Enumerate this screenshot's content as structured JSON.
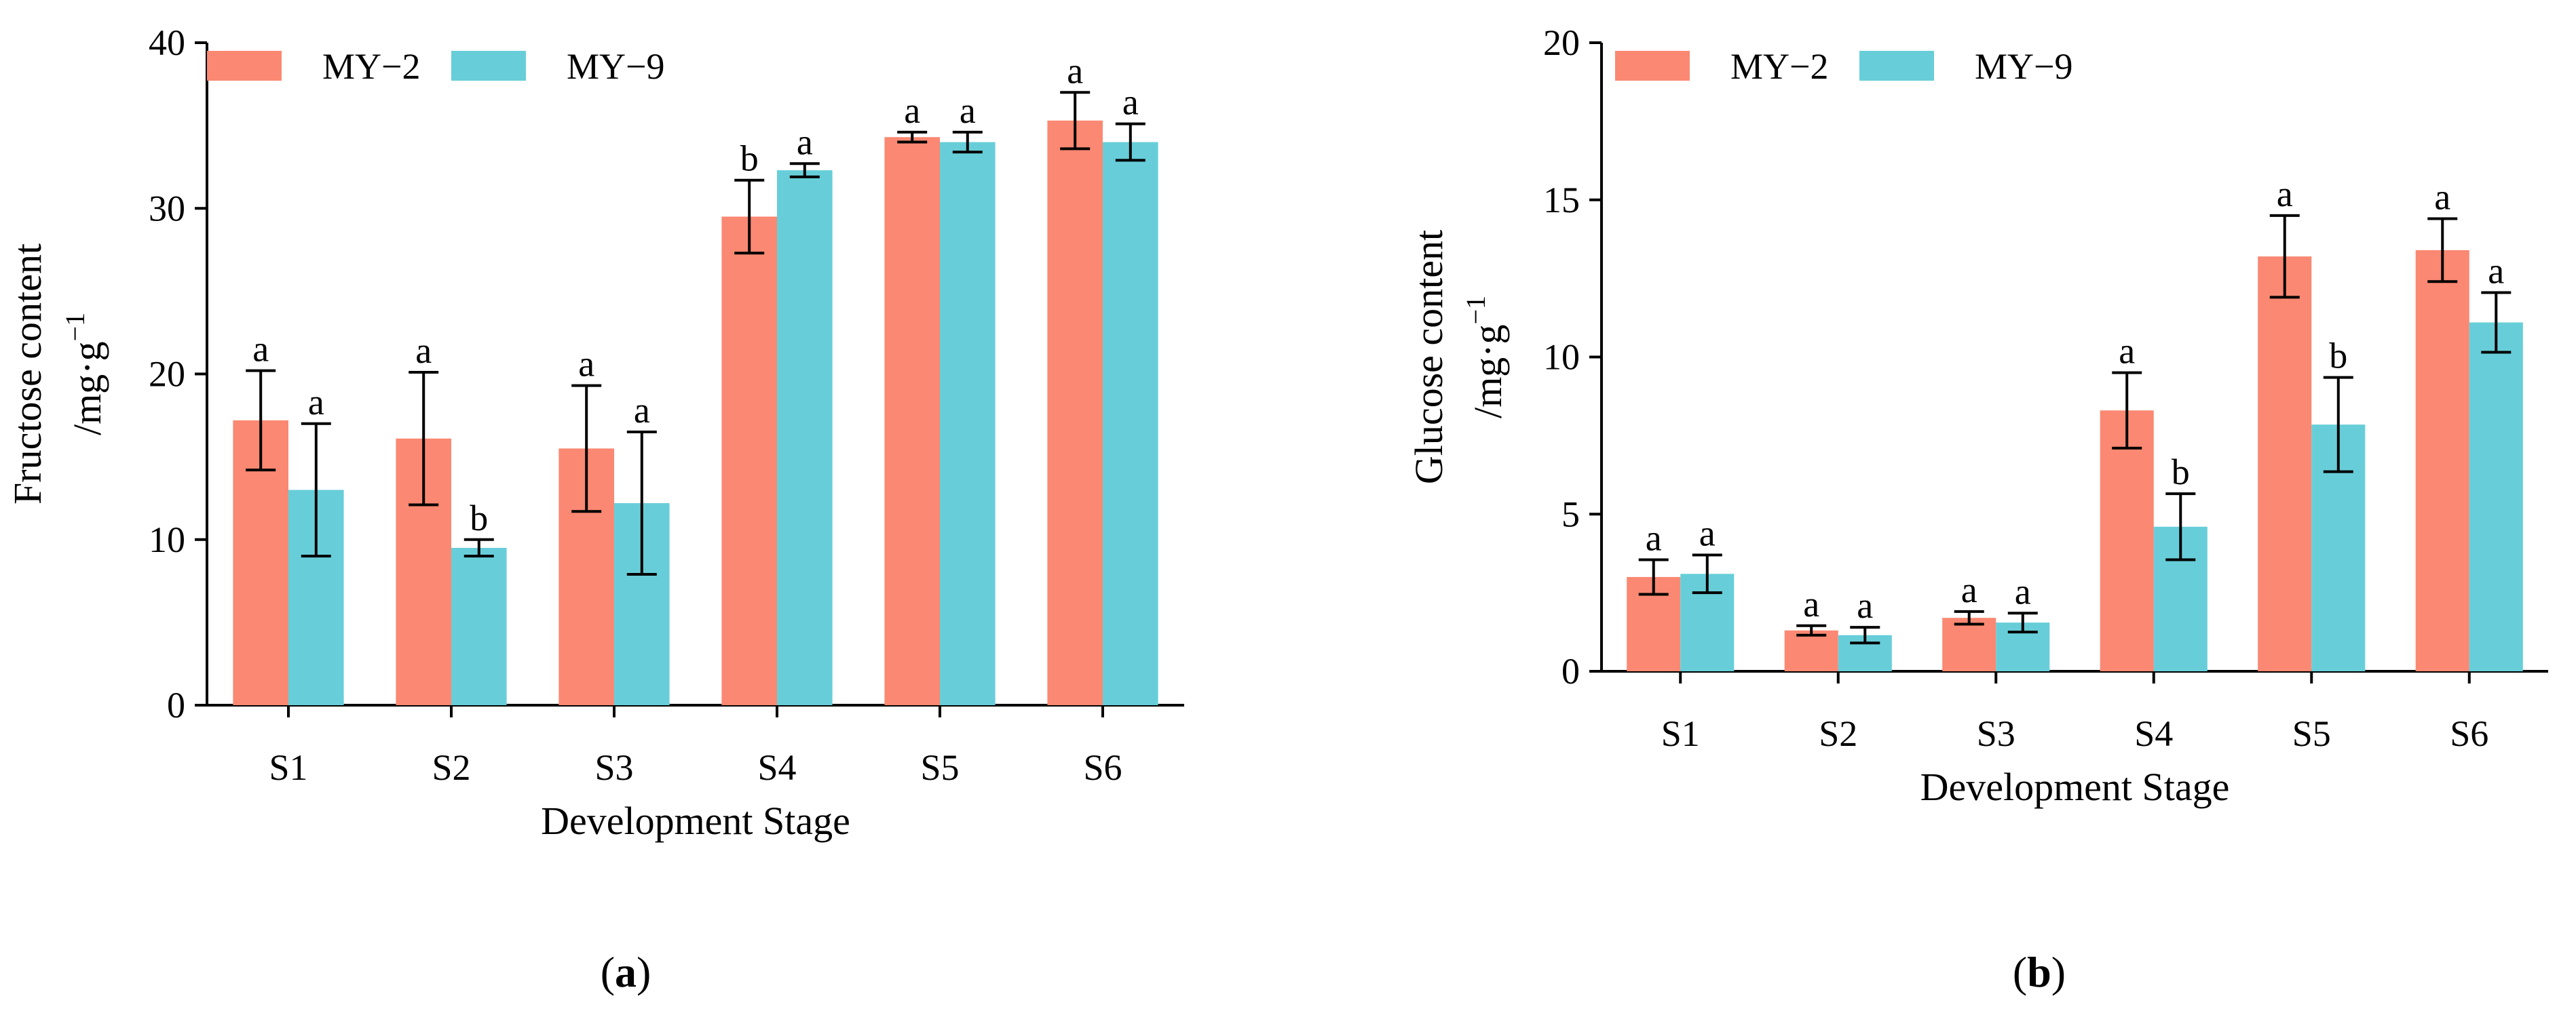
{
  "colors": {
    "MY-2": "#FA8872",
    "MY-9": "#67CED9"
  },
  "chart_data": [
    {
      "type": "bar",
      "panel": "(a)",
      "panel_letter": "a",
      "xlabel": "Development Stage",
      "ylabel_line1": "Fructose content",
      "ylabel_unit_main": "/mg·g",
      "ylabel_unit_sup": "−1",
      "ylim": [
        0,
        40
      ],
      "yticks": [
        0,
        10,
        20,
        30,
        40
      ],
      "categories": [
        "S1",
        "S2",
        "S3",
        "S4",
        "S5",
        "S6"
      ],
      "legend_position": "top-left",
      "series": [
        {
          "name": "MY−2",
          "key": "MY-2",
          "values": [
            17.2,
            16.1,
            15.5,
            29.5,
            34.3,
            35.3
          ],
          "errors": [
            3.0,
            4.0,
            3.8,
            2.2,
            0.3,
            1.7
          ],
          "significance": [
            "a",
            "a",
            "a",
            "b",
            "a",
            "a"
          ]
        },
        {
          "name": "MY−9",
          "key": "MY-9",
          "values": [
            13.0,
            9.5,
            12.2,
            32.3,
            34.0,
            34.0
          ],
          "errors": [
            4.0,
            0.5,
            4.3,
            0.4,
            0.6,
            1.1
          ],
          "significance": [
            "a",
            "b",
            "a",
            "a",
            "a",
            "a"
          ]
        }
      ]
    },
    {
      "type": "bar",
      "panel": "(b)",
      "panel_letter": "b",
      "xlabel": "Development Stage",
      "ylabel_line1": "Glucose content",
      "ylabel_unit_main": "/mg·g",
      "ylabel_unit_sup": "−1",
      "ylim": [
        0,
        20
      ],
      "yticks": [
        0,
        5,
        10,
        15,
        20
      ],
      "categories": [
        "S1",
        "S2",
        "S3",
        "S4",
        "S5",
        "S6"
      ],
      "legend_position": "top-left",
      "series": [
        {
          "name": "MY−2",
          "key": "MY-2",
          "values": [
            3.0,
            1.3,
            1.7,
            8.3,
            13.2,
            13.4
          ],
          "errors": [
            0.55,
            0.15,
            0.2,
            1.2,
            1.3,
            1.0
          ],
          "significance": [
            "a",
            "a",
            "a",
            "a",
            "a",
            "a"
          ]
        },
        {
          "name": "MY−9",
          "key": "MY-9",
          "values": [
            3.1,
            1.15,
            1.55,
            4.6,
            7.85,
            11.1
          ],
          "errors": [
            0.6,
            0.25,
            0.3,
            1.05,
            1.5,
            0.95
          ],
          "significance": [
            "a",
            "a",
            "a",
            "b",
            "b",
            "a"
          ]
        }
      ]
    }
  ]
}
